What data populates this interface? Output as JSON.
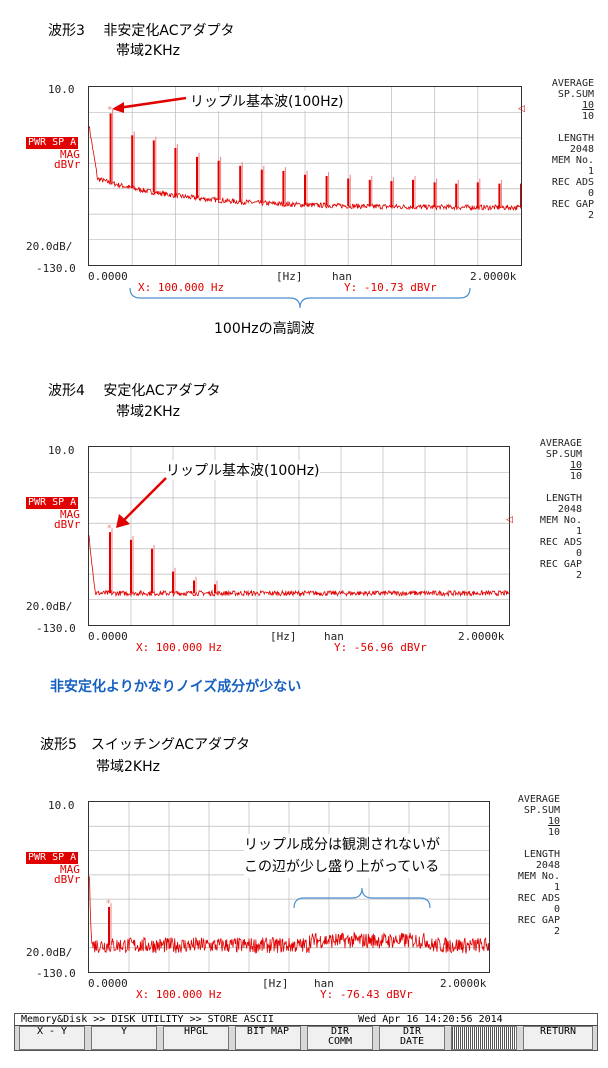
{
  "unit_labels": {
    "hz": "[Hz]",
    "win": "han",
    "x0": "0.0000",
    "x1": "2.0000k",
    "y_div": "20.0dB/",
    "y_top": "10.0",
    "y_bot": "-130.0",
    "pwr": "PWR SP A",
    "mag": "MAG",
    "dbvr": "dBVr"
  },
  "side_info": {
    "average": "AVERAGE",
    "sp_sum": "SP.SUM",
    "sum_num": "10",
    "sum_den": "10",
    "length": "LENGTH",
    "length_val": "2048",
    "mem": "MEM No.",
    "mem_val": "1",
    "rec_ads": "REC ADS",
    "rec_ads_val": "0",
    "rec_gap": "REC GAP",
    "rec_gap_val": "2"
  },
  "panels": [
    {
      "title1": "波形3　 非安定化ACアダプタ",
      "title2": "帯域2KHz",
      "callout": "リップル基本波(100Hz)",
      "x_readout": "X:  100.000 Hz",
      "y_readout": "Y:      -10.73 dBVr",
      "brace_label": "100Hzの高調波"
    },
    {
      "title1": "波形4　 安定化ACアダプタ",
      "title2": "帯域2KHz",
      "callout": "リップル基本波(100Hz)",
      "x_readout": "X:  100.000 Hz",
      "y_readout": "Y:     -56.96 dBVr"
    },
    {
      "title1": "波形5　スイッチングACアダプタ",
      "title2": "帯域2KHz",
      "callout1": "リップル成分は観測されないが",
      "callout2": "この辺が少し盛り上がっている",
      "x_readout": "X:  100.000 Hz",
      "y_readout": "Y:     -76.43 dBVr"
    }
  ],
  "note": "非安定化よりかなりノイズ成分が少ない",
  "utility_bar": {
    "status": " Memory&Disk >> DISK UTILITY >> STORE ASCII              Wed Apr 16 14:20:56 2014 ",
    "keys": [
      {
        "l1": "X - Y",
        "l2": ""
      },
      {
        "l1": "Y",
        "l2": ""
      },
      {
        "l1": "HPGL",
        "l2": ""
      },
      {
        "l1": "BIT MAP",
        "l2": ""
      },
      {
        "l1": "DIR",
        "l2": "COMM"
      },
      {
        "l1": "DIR",
        "l2": "DATE"
      },
      {
        "l1": "",
        "l2": ""
      },
      {
        "l1": "RETURN",
        "l2": ""
      }
    ]
  },
  "colors": {
    "trace": "#e00000",
    "callout_arrow": "#e00000",
    "brace": "#4a90d0",
    "note": "#1560c0"
  },
  "chart_data": [
    {
      "type": "line",
      "title": "波形3　 非安定化ACアダプタ",
      "xlabel": "[Hz]",
      "ylabel": "dBVr",
      "xlim": [
        0,
        2000
      ],
      "ylim": [
        -130,
        10
      ],
      "series": [
        {
          "values_desc": "harmonic peaks every 100 Hz",
          "x": [
            100,
            200,
            300,
            400,
            500,
            600,
            700,
            800,
            900,
            1000,
            1100,
            1200,
            1300,
            1400,
            1500,
            1600,
            1700,
            1800,
            1900,
            2000
          ],
          "y": [
            -10.73,
            -28,
            -32,
            -38,
            -45,
            -48,
            -52,
            -55,
            -56,
            -59,
            -60,
            -62,
            -63,
            -64,
            -63,
            -65,
            -66,
            -65,
            -66,
            -66
          ]
        }
      ]
    },
    {
      "type": "line",
      "title": "波形4　 安定化ACアダプタ",
      "xlabel": "[Hz]",
      "ylabel": "dBVr",
      "xlim": [
        0,
        2000
      ],
      "ylim": [
        -130,
        10
      ],
      "series": [
        {
          "x": [
            100,
            200,
            300,
            400,
            500,
            600
          ],
          "y": [
            -56.96,
            -63,
            -70,
            -88,
            -95,
            -98
          ]
        }
      ]
    },
    {
      "type": "line",
      "title": "波形5　スイッチングACアダプタ",
      "xlabel": "[Hz]",
      "ylabel": "dBVr",
      "xlim": [
        0,
        2000
      ],
      "ylim": [
        -130,
        10
      ],
      "series": [
        {
          "x": [
            100
          ],
          "y": [
            -76.43
          ]
        }
      ]
    }
  ]
}
